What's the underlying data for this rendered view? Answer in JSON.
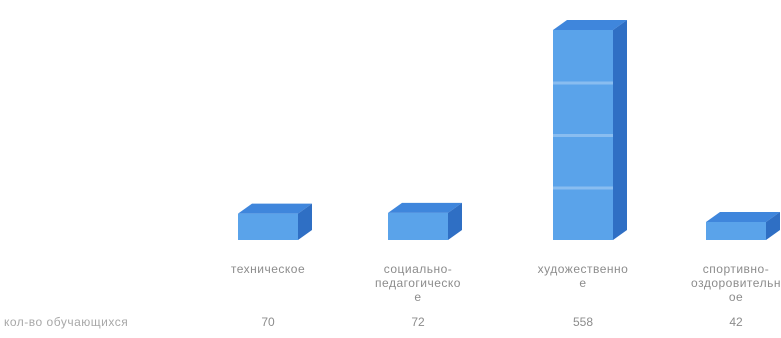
{
  "chart_data": {
    "type": "bar",
    "categories": [
      "техническое",
      "социально-педагогическое",
      "художественное",
      "спортивно-оздоровительное"
    ],
    "category_labels": [
      [
        "техническое"
      ],
      [
        "социально-",
        "педагогическо",
        "е"
      ],
      [
        "художественно",
        "е"
      ],
      [
        "спортивно-",
        "оздоровительн",
        "ое"
      ]
    ],
    "series": [
      {
        "name": "кол-во обучающихся",
        "values": [
          70,
          72,
          558,
          42
        ]
      }
    ],
    "value_labels": [
      "70",
      "72",
      "558",
      "42"
    ],
    "ylim": [
      0,
      558
    ],
    "grid": false,
    "legend": "none",
    "colors": {
      "front": "#5aa3ea",
      "top": "#3f86dc",
      "side": "#2f6fc4",
      "band": "#9cc8f2"
    }
  }
}
